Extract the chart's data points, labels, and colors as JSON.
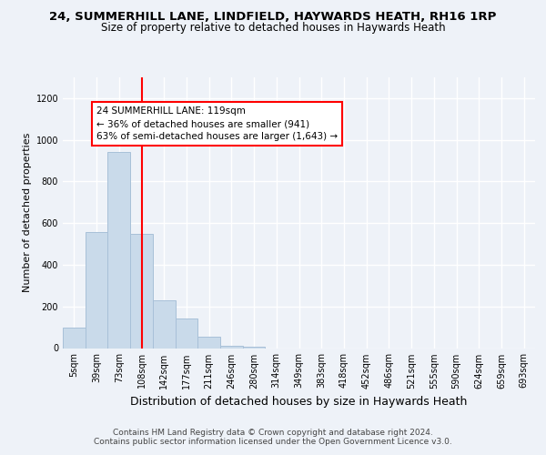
{
  "title_line1": "24, SUMMERHILL LANE, LINDFIELD, HAYWARDS HEATH, RH16 1RP",
  "title_line2": "Size of property relative to detached houses in Haywards Heath",
  "xlabel": "Distribution of detached houses by size in Haywards Heath",
  "ylabel": "Number of detached properties",
  "bin_labels": [
    "5sqm",
    "39sqm",
    "73sqm",
    "108sqm",
    "142sqm",
    "177sqm",
    "211sqm",
    "246sqm",
    "280sqm",
    "314sqm",
    "349sqm",
    "383sqm",
    "418sqm",
    "452sqm",
    "486sqm",
    "521sqm",
    "555sqm",
    "590sqm",
    "624sqm",
    "659sqm",
    "693sqm"
  ],
  "bar_values": [
    100,
    555,
    940,
    550,
    230,
    140,
    55,
    10,
    5,
    0,
    0,
    0,
    0,
    0,
    0,
    0,
    0,
    0,
    0,
    0,
    0
  ],
  "bar_color": "#c9daea",
  "bar_edge_color": "#a8c0d8",
  "vline_x": 3.0,
  "annotation_text": "24 SUMMERHILL LANE: 119sqm\n← 36% of detached houses are smaller (941)\n63% of semi-detached houses are larger (1,643) →",
  "annotation_box_color": "white",
  "annotation_box_edge_color": "red",
  "vline_color": "red",
  "ylim": [
    0,
    1300
  ],
  "yticks": [
    0,
    200,
    400,
    600,
    800,
    1000,
    1200
  ],
  "footer_line1": "Contains HM Land Registry data © Crown copyright and database right 2024.",
  "footer_line2": "Contains public sector information licensed under the Open Government Licence v3.0.",
  "bg_color": "#eef2f8",
  "grid_color": "white",
  "title_fontsize": 9.5,
  "subtitle_fontsize": 8.5,
  "ylabel_fontsize": 8,
  "xlabel_fontsize": 9,
  "tick_fontsize": 7,
  "footer_fontsize": 6.5,
  "annot_fontsize": 7.5
}
